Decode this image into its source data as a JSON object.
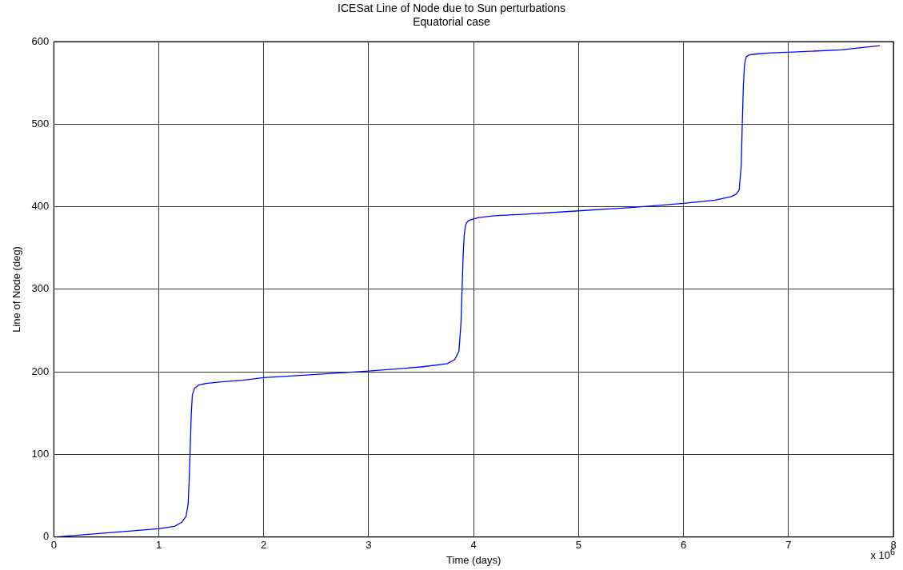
{
  "chart_data": {
    "type": "line",
    "title": "ICESat Line of Node due to Sun perturbations",
    "subtitle": "Equatorial case",
    "xlabel": "Time (days)",
    "ylabel": "Line of Node (deg)",
    "annotations": [
      "x 10$^{6}$"
    ],
    "x": [
      0,
      0.5,
      1,
      1.15,
      1.22,
      1.26,
      1.28,
      1.29,
      1.3,
      1.31,
      1.32,
      1.34,
      1.38,
      1.45,
      1.6,
      1.8,
      2,
      2.5,
      3,
      3.5,
      3.75,
      3.82,
      3.86,
      3.88,
      3.89,
      3.9,
      3.91,
      3.92,
      3.93,
      3.95,
      3.99,
      4.05,
      4.2,
      4.5,
      5,
      5.5,
      6,
      6.3,
      6.45,
      6.5,
      6.53,
      6.55,
      6.56,
      6.57,
      6.58,
      6.59,
      6.6,
      6.63,
      6.7,
      6.8,
      7,
      7.5,
      7.87
    ],
    "series": [
      {
        "color": "#0000ff",
        "values": [
          0,
          5,
          10,
          13,
          18,
          25,
          40,
          70,
          110,
          150,
          172,
          180,
          184,
          186,
          188,
          190,
          193,
          197,
          201,
          206,
          210,
          215,
          225,
          260,
          300,
          340,
          365,
          375,
          380,
          383,
          385,
          387,
          389,
          391,
          395,
          399,
          404,
          408,
          412,
          415,
          420,
          450,
          500,
          545,
          570,
          578,
          582,
          584,
          585,
          586,
          587,
          590,
          595
        ]
      }
    ],
    "xlim": [
      0,
      8
    ],
    "xticks": [
      0,
      1,
      2,
      3,
      4,
      5,
      6,
      7,
      8
    ],
    "ylim": [
      0,
      600
    ],
    "yticks": [
      0,
      100,
      200,
      300,
      400,
      500,
      600
    ],
    "grid": true,
    "legend": false,
    "marker": "none",
    "line_style": "solid"
  }
}
